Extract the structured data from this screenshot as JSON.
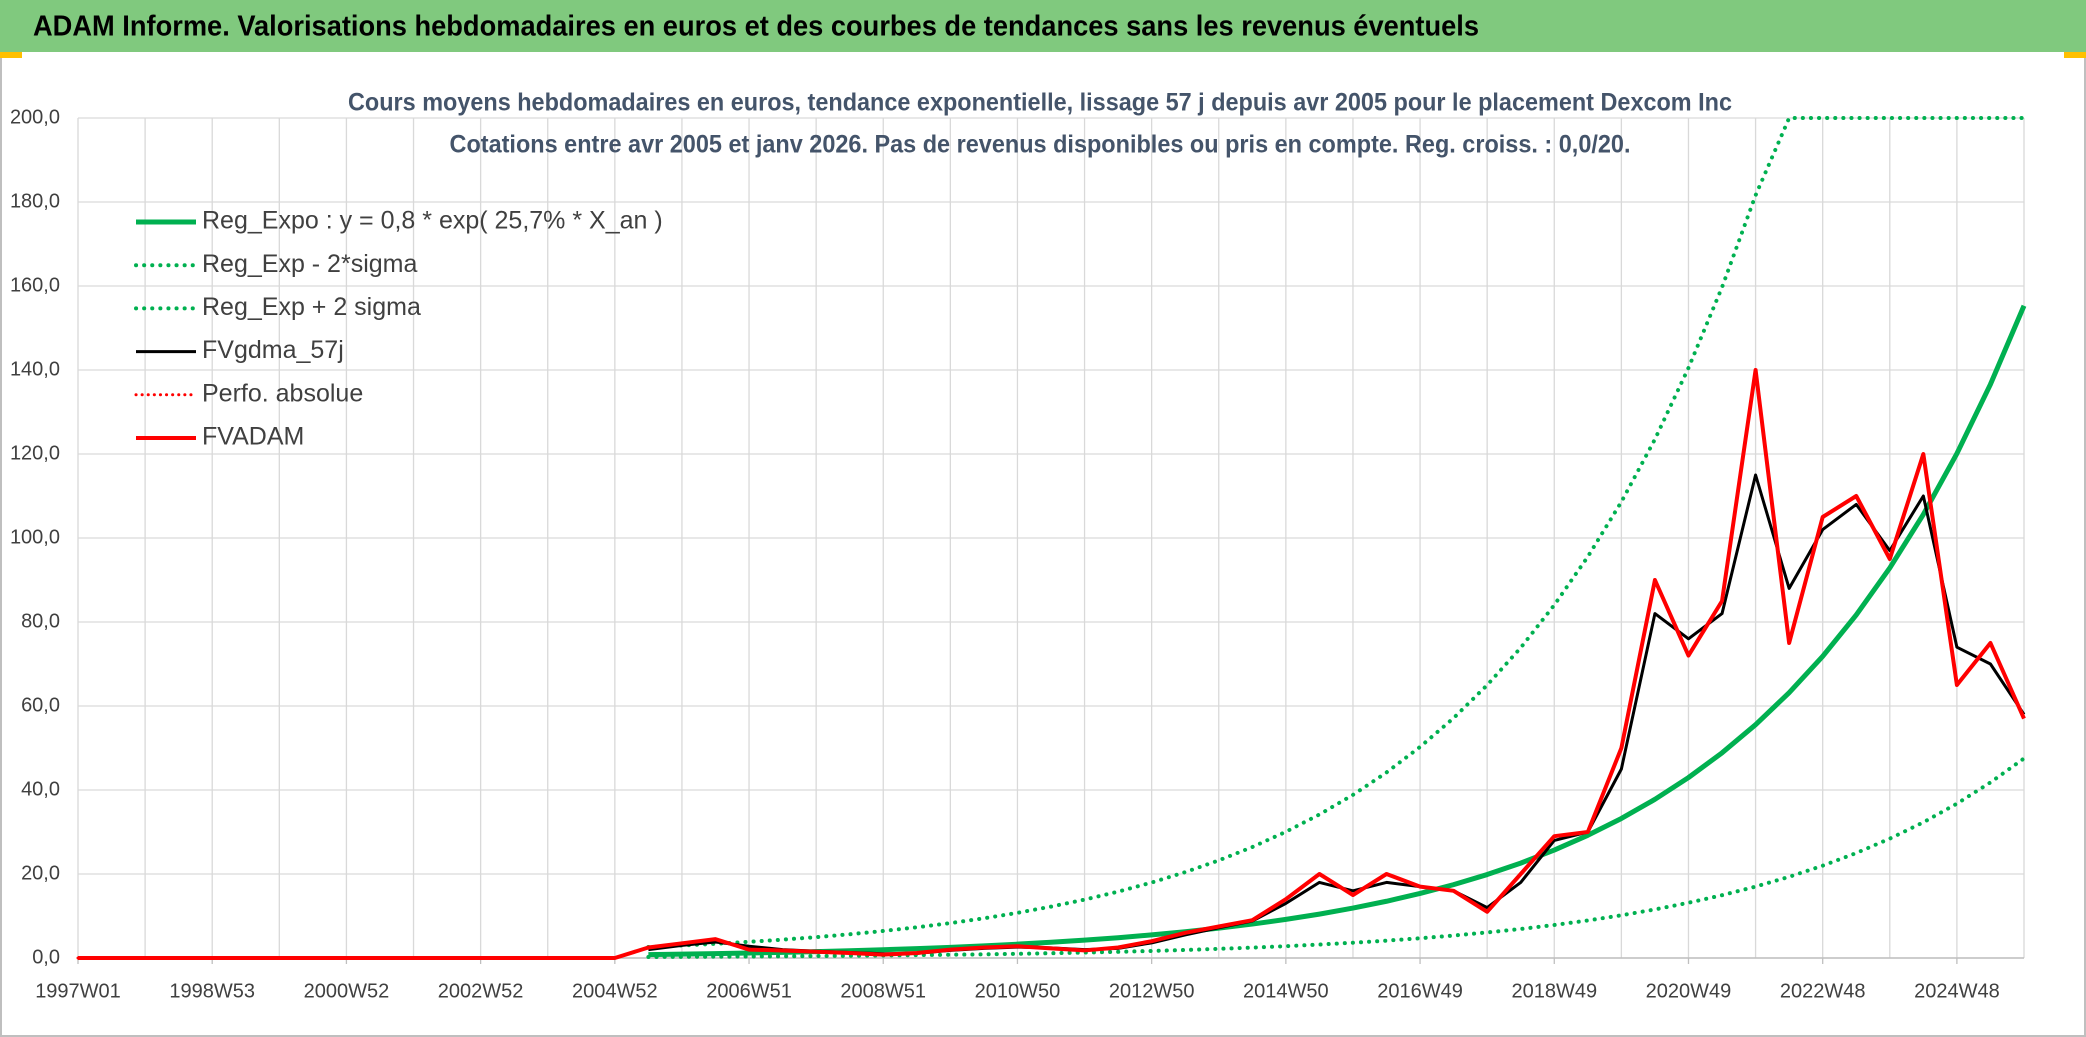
{
  "header": {
    "title": "ADAM Informe. Valorisations hebdomadaires en euros et des courbes de tendances sans les revenus éventuels"
  },
  "chart_data": {
    "type": "line",
    "title": [
      "Cours moyens hebdomadaires en euros, tendance exponentielle, lissage 57 j depuis avr 2005 pour le placement Dexcom Inc",
      "Cotations entre avr 2005 et janv 2026. Pas de revenus disponibles ou pris en compte. Reg. croiss. : 0,0/20."
    ],
    "categories": [
      "1997W01",
      null,
      null,
      null,
      "1998W53",
      null,
      null,
      null,
      "2000W52",
      null,
      null,
      null,
      "2002W52",
      null,
      null,
      null,
      "2004W52",
      null,
      null,
      null,
      "2006W51",
      null,
      null,
      null,
      "2008W51",
      null,
      null,
      null,
      "2010W50",
      null,
      null,
      null,
      "2012W50",
      null,
      null,
      null,
      "2014W50",
      null,
      null,
      null,
      "2016W49",
      null,
      null,
      null,
      "2018W49",
      null,
      null,
      null,
      "2020W49",
      null,
      null,
      null,
      "2022W48",
      null,
      null,
      null,
      "2024W48",
      null,
      null
    ],
    "ylim": [
      0,
      200
    ],
    "yticks": [
      {
        "value": 0,
        "label": "0,0"
      },
      {
        "value": 20,
        "label": "20,0"
      },
      {
        "value": 40,
        "label": "40,0"
      },
      {
        "value": 60,
        "label": "60,0"
      },
      {
        "value": 80,
        "label": "80,0"
      },
      {
        "value": 100,
        "label": "100,0"
      },
      {
        "value": 120,
        "label": "120,0"
      },
      {
        "value": 140,
        "label": "140,0"
      },
      {
        "value": 160,
        "label": "160,0"
      },
      {
        "value": 180,
        "label": "180,0"
      },
      {
        "value": 200,
        "label": "200,0"
      }
    ],
    "grid": true,
    "legend": "top-left",
    "series": [
      {
        "name": "Reg_Expo : y = 0,8 * exp( 25,7% *  X_an )",
        "color": "#00b050",
        "style": "solid",
        "width": 5,
        "values": [
          null,
          null,
          null,
          null,
          null,
          null,
          null,
          null,
          null,
          null,
          null,
          null,
          null,
          null,
          null,
          null,
          null,
          0.8,
          0.91,
          1.03,
          1.18,
          1.34,
          1.52,
          1.73,
          1.97,
          2.24,
          2.54,
          2.89,
          3.29,
          3.74,
          4.25,
          4.83,
          5.5,
          6.25,
          7.11,
          8.08,
          9.19,
          10.45,
          11.88,
          13.51,
          15.37,
          17.47,
          19.87,
          22.59,
          25.7,
          29.22,
          33.22,
          37.78,
          42.96,
          48.85,
          55.55,
          63.17,
          71.83,
          81.68,
          92.88,
          105.6,
          120.1,
          136.6,
          155.3
        ]
      },
      {
        "name": "Reg_Exp - 2*sigma",
        "color": "#00b050",
        "style": "dotted",
        "width": 4,
        "values": [
          null,
          null,
          null,
          null,
          null,
          null,
          null,
          null,
          null,
          null,
          null,
          null,
          null,
          null,
          null,
          null,
          null,
          0.24,
          0.28,
          0.32,
          0.36,
          0.41,
          0.47,
          0.53,
          0.6,
          0.69,
          0.78,
          0.88,
          1.0,
          1.14,
          1.3,
          1.48,
          1.68,
          1.91,
          2.18,
          2.47,
          2.81,
          3.2,
          3.64,
          4.13,
          4.7,
          5.35,
          6.08,
          6.91,
          7.86,
          8.94,
          10.17,
          11.56,
          13.15,
          14.95,
          17.0,
          19.33,
          21.98,
          24.99,
          28.42,
          32.31,
          36.75,
          41.8,
          47.52
        ]
      },
      {
        "name": "Reg_Exp + 2 sigma",
        "color": "#00b050",
        "style": "dotted",
        "width": 4,
        "values": [
          null,
          null,
          null,
          null,
          null,
          null,
          null,
          null,
          null,
          null,
          null,
          null,
          null,
          null,
          null,
          null,
          null,
          2.62,
          2.98,
          3.38,
          3.85,
          4.37,
          4.97,
          5.65,
          6.43,
          7.31,
          8.31,
          9.45,
          10.75,
          12.23,
          13.9,
          15.8,
          17.97,
          20.44,
          23.24,
          26.42,
          30.05,
          34.17,
          38.85,
          44.18,
          50.26,
          57.13,
          64.98,
          73.87,
          84.04,
          95.55,
          108.6,
          123.5,
          140.5,
          159.7,
          181.6,
          200,
          200,
          200,
          200,
          200,
          200,
          200,
          200
        ]
      },
      {
        "name": "FVgdma_57j",
        "color": "#000000",
        "style": "solid",
        "width": 3,
        "values": [
          null,
          null,
          null,
          null,
          null,
          null,
          null,
          null,
          null,
          null,
          null,
          null,
          null,
          null,
          null,
          null,
          null,
          2.0,
          3.0,
          3.8,
          2.8,
          2.0,
          1.6,
          1.3,
          1.0,
          1.1,
          1.8,
          2.3,
          2.6,
          2.4,
          2.0,
          2.3,
          3.6,
          5.5,
          7.2,
          8.8,
          13,
          18,
          16,
          18,
          17,
          16,
          12,
          18,
          28,
          30,
          45,
          82,
          76,
          82,
          115,
          88,
          102,
          108,
          97,
          110,
          74,
          70,
          58
        ]
      },
      {
        "name": "Perfo. absolue",
        "color": "#ff0000",
        "style": "dotted",
        "width": 3,
        "values": [
          0,
          0,
          0,
          0,
          0,
          0,
          0,
          0,
          0,
          0,
          0,
          0,
          0,
          0,
          0,
          0,
          0,
          2.5,
          3.5,
          4.5,
          2,
          1.8,
          1.5,
          1.2,
          0.8,
          1.2,
          2,
          2.5,
          2.8,
          2.3,
          1.8,
          2.5,
          4,
          6,
          7.5,
          9,
          14,
          20,
          15,
          20,
          17,
          16,
          11,
          20,
          29,
          30,
          50,
          90,
          72,
          85,
          140,
          75,
          105,
          110,
          95,
          120,
          65,
          75,
          57
        ]
      },
      {
        "name": "FVADAM",
        "color": "#ff0000",
        "style": "solid",
        "width": 4,
        "values": [
          0,
          0,
          0,
          0,
          0,
          0,
          0,
          0,
          0,
          0,
          0,
          0,
          0,
          0,
          0,
          0,
          0,
          2.5,
          3.5,
          4.5,
          2,
          1.8,
          1.5,
          1.2,
          0.8,
          1.2,
          2,
          2.5,
          2.8,
          2.3,
          1.8,
          2.5,
          4,
          6,
          7.5,
          9,
          14,
          20,
          15,
          20,
          17,
          16,
          11,
          20,
          29,
          30,
          50,
          90,
          72,
          85,
          140,
          75,
          105,
          110,
          95,
          120,
          65,
          75,
          57
        ]
      }
    ]
  }
}
